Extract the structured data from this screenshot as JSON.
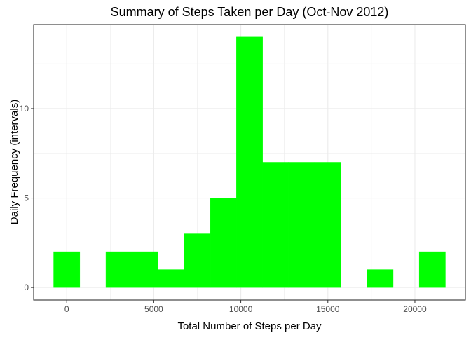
{
  "chart_data": {
    "type": "bar",
    "title": "Summary of Steps Taken per Day (Oct-Nov 2012)",
    "xlabel": "Total Number of Steps per Day",
    "ylabel": "Daily Frequency (intervals)",
    "xlim": [
      -1900,
      22900
    ],
    "ylim": [
      -0.7,
      14.7
    ],
    "xticks": [
      0,
      5000,
      10000,
      15000,
      20000
    ],
    "yticks": [
      0,
      5,
      10
    ],
    "minor_xticks": [
      2500,
      7500,
      12500,
      17500
    ],
    "minor_yticks": [
      2.5,
      7.5,
      12.5
    ],
    "grid": true,
    "bin_width": 1500,
    "bins": [
      {
        "x0": -750,
        "x1": 750,
        "count": 2
      },
      {
        "x0": 750,
        "x1": 2250,
        "count": 0
      },
      {
        "x0": 2250,
        "x1": 3750,
        "count": 2
      },
      {
        "x0": 3750,
        "x1": 5250,
        "count": 2
      },
      {
        "x0": 5250,
        "x1": 6750,
        "count": 1
      },
      {
        "x0": 6750,
        "x1": 8250,
        "count": 3
      },
      {
        "x0": 8250,
        "x1": 9750,
        "count": 5
      },
      {
        "x0": 9750,
        "x1": 11250,
        "count": 14
      },
      {
        "x0": 11250,
        "x1": 12750,
        "count": 7
      },
      {
        "x0": 12750,
        "x1": 14250,
        "count": 7
      },
      {
        "x0": 14250,
        "x1": 15750,
        "count": 7
      },
      {
        "x0": 15750,
        "x1": 17250,
        "count": 0
      },
      {
        "x0": 17250,
        "x1": 18750,
        "count": 1
      },
      {
        "x0": 18750,
        "x1": 20250,
        "count": 0
      },
      {
        "x0": 20250,
        "x1": 21750,
        "count": 2
      }
    ],
    "bar_color": "#00FF00",
    "axis_text_color": "#4D4D4D",
    "grid_color": "#EBEBEB",
    "panel_border_color": "#333333"
  }
}
